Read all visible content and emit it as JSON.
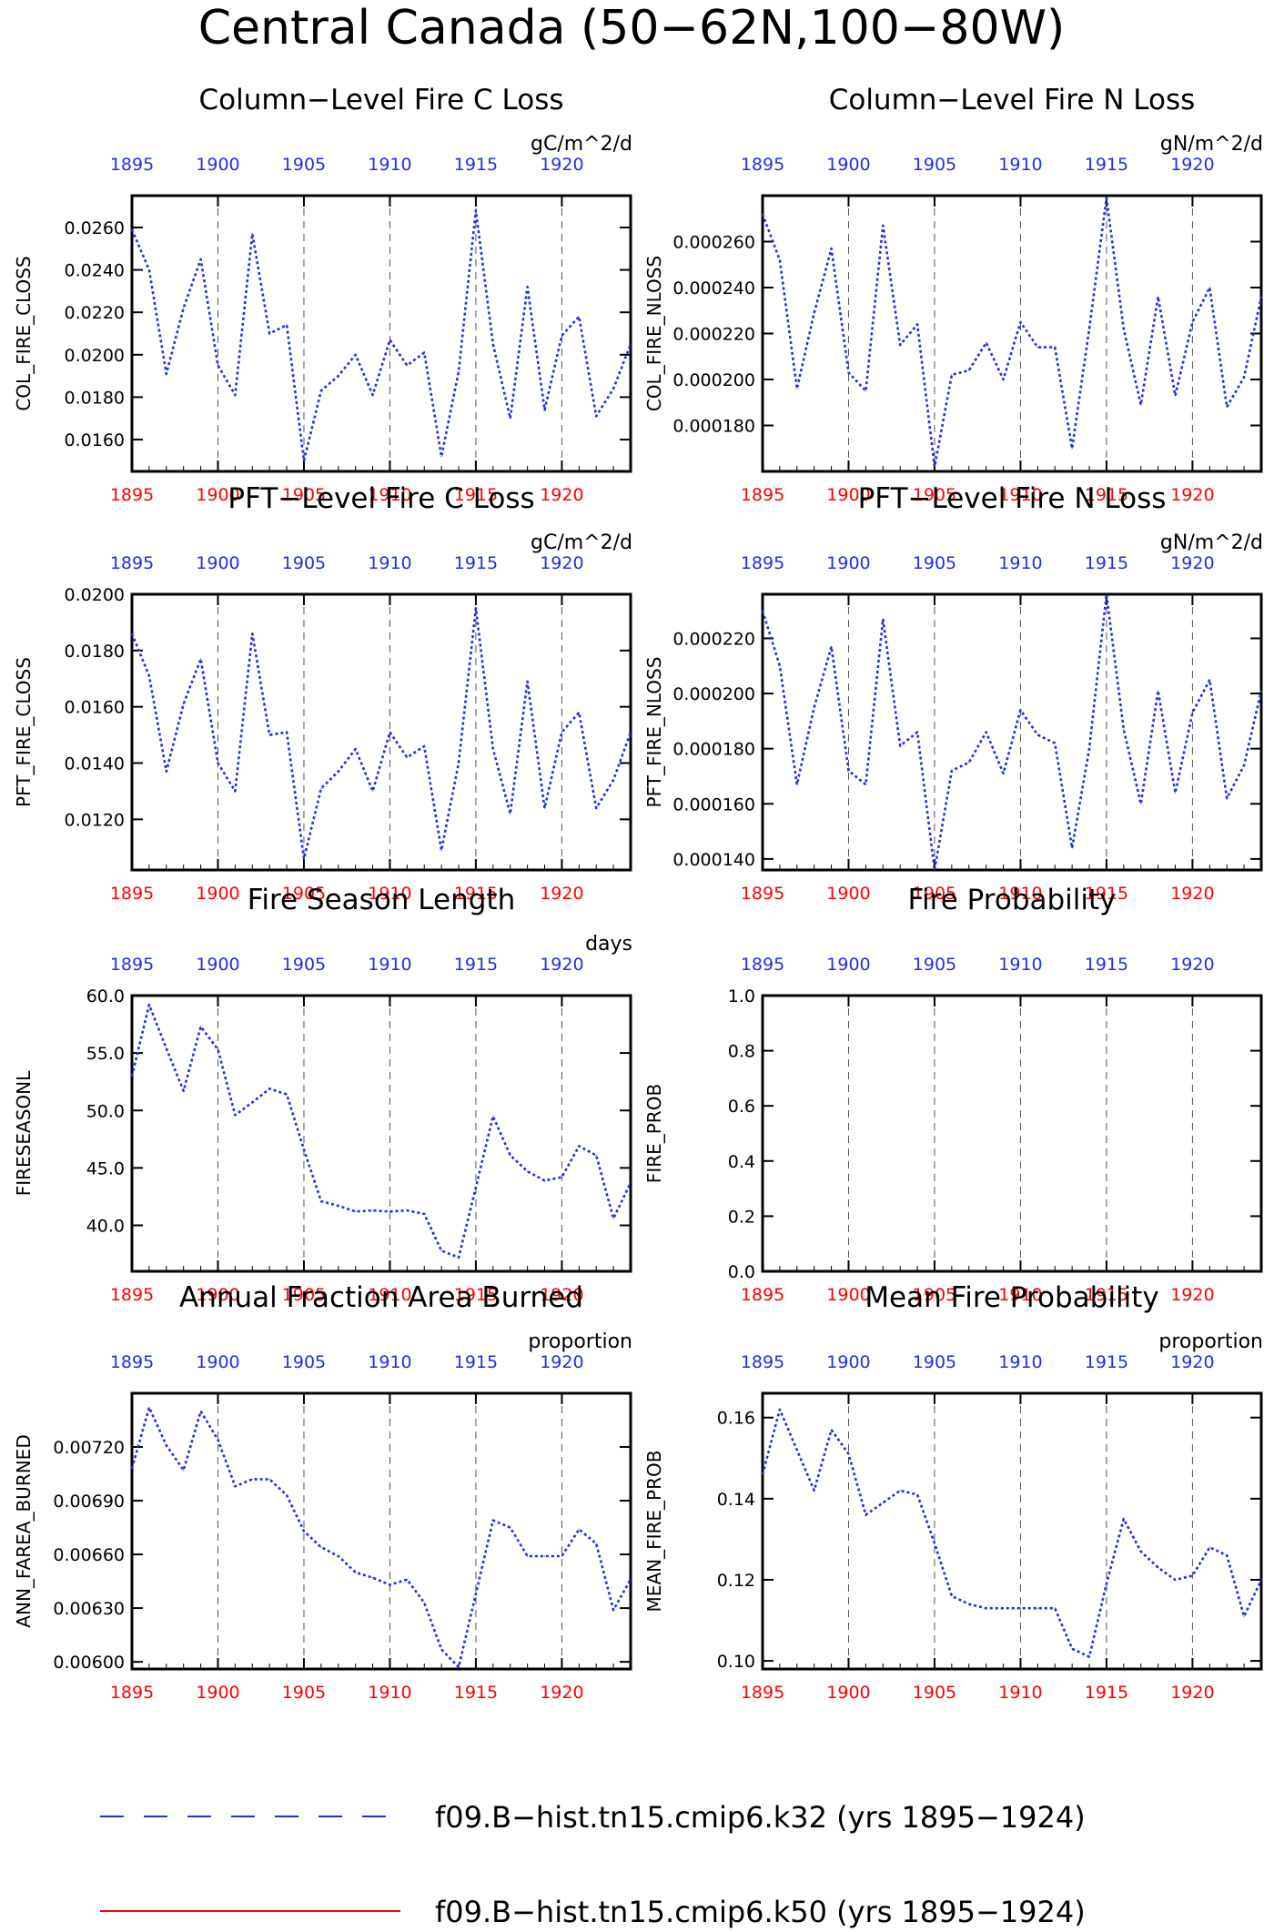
{
  "figure": {
    "title": "Central Canada (50−62N,100−80W)"
  },
  "colors": {
    "series1": "#1f2fe8",
    "series2": "#ff0000",
    "bottom_ticks": "#ff0000",
    "top_ticks": "#1f2fe8",
    "axis": "#000000",
    "grid": "#555555"
  },
  "legend": {
    "items": [
      {
        "label": "f09.B−hist.tn15.cmip6.k32 (yrs 1895−1924)",
        "style": "dashed",
        "color": "#1f2fe8"
      },
      {
        "label": "f09.B−hist.tn15.cmip6.k50 (yrs 1895−1924)",
        "style": "solid",
        "color": "#ff0000"
      }
    ]
  },
  "chart_data": [
    {
      "type": "line",
      "title": "Column−Level Fire C Loss",
      "units": "gC/m^2/d",
      "ylabel": "COL_FIRE_CLOSS",
      "xlim": [
        1895,
        1924
      ],
      "ylim": [
        0.0145,
        0.0275
      ],
      "xticks": [
        1895,
        1900,
        1905,
        1910,
        1915,
        1920
      ],
      "xtick_labels": [
        "1895",
        "1900",
        "1905",
        "1910",
        "1915",
        "1920"
      ],
      "yticks": [
        0.016,
        0.018,
        0.02,
        0.022,
        0.024,
        0.026
      ],
      "ytick_labels": [
        "0.0160",
        "0.0180",
        "0.0200",
        "0.0220",
        "0.0240",
        "0.0260"
      ],
      "grid_x": [
        1900,
        1905,
        1910,
        1915,
        1920
      ],
      "x": [
        1895,
        1896,
        1897,
        1898,
        1899,
        1900,
        1901,
        1902,
        1903,
        1904,
        1905,
        1906,
        1907,
        1908,
        1909,
        1910,
        1911,
        1912,
        1913,
        1914,
        1915,
        1916,
        1917,
        1918,
        1919,
        1920,
        1921,
        1922,
        1923,
        1924
      ],
      "series": [
        {
          "values": [
            0.0259,
            0.024,
            0.0191,
            0.0222,
            0.0245,
            0.0195,
            0.0181,
            0.0257,
            0.021,
            0.0214,
            0.015,
            0.0183,
            0.019,
            0.02,
            0.0181,
            0.0207,
            0.0195,
            0.0201,
            0.0152,
            0.0192,
            0.0268,
            0.0205,
            0.017,
            0.0232,
            0.0174,
            0.0209,
            0.0218,
            0.0171,
            0.0184,
            0.0205
          ]
        }
      ]
    },
    {
      "type": "line",
      "title": "Column−Level Fire N Loss",
      "units": "gN/m^2/d",
      "ylabel": "COL_FIRE_NLOSS",
      "xlim": [
        1895,
        1924
      ],
      "ylim": [
        0.00016,
        0.00028
      ],
      "xticks": [
        1895,
        1900,
        1905,
        1910,
        1915,
        1920
      ],
      "xtick_labels": [
        "1895",
        "1900",
        "1905",
        "1910",
        "1915",
        "1920"
      ],
      "yticks": [
        0.00018,
        0.0002,
        0.00022,
        0.00024,
        0.00026
      ],
      "ytick_labels": [
        "0.000180",
        "0.000200",
        "0.000220",
        "0.000240",
        "0.000260"
      ],
      "grid_x": [
        1900,
        1905,
        1910,
        1915,
        1920
      ],
      "x": [
        1895,
        1896,
        1897,
        1898,
        1899,
        1900,
        1901,
        1902,
        1903,
        1904,
        1905,
        1906,
        1907,
        1908,
        1909,
        1910,
        1911,
        1912,
        1913,
        1914,
        1915,
        1916,
        1917,
        1918,
        1919,
        1920,
        1921,
        1922,
        1923,
        1924
      ],
      "series": [
        {
          "values": [
            0.000272,
            0.000252,
            0.000196,
            0.000229,
            0.000257,
            0.000203,
            0.000195,
            0.000267,
            0.000215,
            0.000224,
            0.000162,
            0.000202,
            0.000204,
            0.000216,
            0.0002,
            0.000225,
            0.000214,
            0.000214,
            0.00017,
            0.000222,
            0.000279,
            0.000222,
            0.000189,
            0.000236,
            0.000193,
            0.000225,
            0.00024,
            0.000188,
            0.000201,
            0.000236
          ]
        }
      ]
    },
    {
      "type": "line",
      "title": "PFT−Level Fire C Loss",
      "units": "gC/m^2/d",
      "ylabel": "PFT_FIRE_CLOSS",
      "xlim": [
        1895,
        1924
      ],
      "ylim": [
        0.0102,
        0.02
      ],
      "xticks": [
        1895,
        1900,
        1905,
        1910,
        1915,
        1920
      ],
      "xtick_labels": [
        "1895",
        "1900",
        "1905",
        "1910",
        "1915",
        "1920"
      ],
      "yticks": [
        0.012,
        0.014,
        0.016,
        0.018,
        0.02
      ],
      "ytick_labels": [
        "0.0120",
        "0.0140",
        "0.0160",
        "0.0180",
        "0.0200"
      ],
      "grid_x": [
        1900,
        1905,
        1910,
        1915,
        1920
      ],
      "x": [
        1895,
        1896,
        1897,
        1898,
        1899,
        1900,
        1901,
        1902,
        1903,
        1904,
        1905,
        1906,
        1907,
        1908,
        1909,
        1910,
        1911,
        1912,
        1913,
        1914,
        1915,
        1916,
        1917,
        1918,
        1919,
        1920,
        1921,
        1922,
        1923,
        1924
      ],
      "series": [
        {
          "values": [
            0.0186,
            0.0171,
            0.0137,
            0.0161,
            0.0177,
            0.014,
            0.013,
            0.0186,
            0.015,
            0.0151,
            0.0106,
            0.0131,
            0.0137,
            0.0145,
            0.013,
            0.0151,
            0.0142,
            0.0146,
            0.0109,
            0.014,
            0.0195,
            0.0145,
            0.0122,
            0.0169,
            0.0124,
            0.0151,
            0.0158,
            0.0124,
            0.0134,
            0.0151
          ]
        }
      ]
    },
    {
      "type": "line",
      "title": "PFT−Level Fire N Loss",
      "units": "gN/m^2/d",
      "ylabel": "PFT_FIRE_NLOSS",
      "xlim": [
        1895,
        1924
      ],
      "ylim": [
        0.000136,
        0.000236
      ],
      "xticks": [
        1895,
        1900,
        1905,
        1910,
        1915,
        1920
      ],
      "xtick_labels": [
        "1895",
        "1900",
        "1905",
        "1910",
        "1915",
        "1920"
      ],
      "yticks": [
        0.00014,
        0.00016,
        0.00018,
        0.0002,
        0.00022
      ],
      "ytick_labels": [
        "0.000140",
        "0.000160",
        "0.000180",
        "0.000200",
        "0.000220"
      ],
      "grid_x": [
        1900,
        1905,
        1910,
        1915,
        1920
      ],
      "x": [
        1895,
        1896,
        1897,
        1898,
        1899,
        1900,
        1901,
        1902,
        1903,
        1904,
        1905,
        1906,
        1907,
        1908,
        1909,
        1910,
        1911,
        1912,
        1913,
        1914,
        1915,
        1916,
        1917,
        1918,
        1919,
        1920,
        1921,
        1922,
        1923,
        1924
      ],
      "series": [
        {
          "values": [
            0.00023,
            0.00021,
            0.000167,
            0.000195,
            0.000217,
            0.000172,
            0.000167,
            0.000227,
            0.000181,
            0.000186,
            0.000136,
            0.000172,
            0.000175,
            0.000186,
            0.000171,
            0.000194,
            0.000185,
            0.000182,
            0.000144,
            0.00018,
            0.000236,
            0.000187,
            0.00016,
            0.000201,
            0.000164,
            0.000193,
            0.000205,
            0.000162,
            0.000174,
            0.000201
          ]
        }
      ]
    },
    {
      "type": "line",
      "title": "Fire Season Length",
      "units": "days",
      "ylabel": "FIRESEASONL",
      "xlim": [
        1895,
        1924
      ],
      "ylim": [
        36.0,
        60.0
      ],
      "xticks": [
        1895,
        1900,
        1905,
        1910,
        1915,
        1920
      ],
      "xtick_labels": [
        "1895",
        "1900",
        "1905",
        "1910",
        "1915",
        "1920"
      ],
      "yticks": [
        40,
        45,
        50,
        55,
        60
      ],
      "ytick_labels": [
        "40.0",
        "45.0",
        "50.0",
        "55.0",
        "60.0"
      ],
      "grid_x": [
        1900,
        1905,
        1910,
        1915,
        1920
      ],
      "x": [
        1895,
        1896,
        1897,
        1898,
        1899,
        1900,
        1901,
        1902,
        1903,
        1904,
        1905,
        1906,
        1907,
        1908,
        1909,
        1910,
        1911,
        1912,
        1913,
        1914,
        1915,
        1916,
        1917,
        1918,
        1919,
        1920,
        1921,
        1922,
        1923,
        1924
      ],
      "series": [
        {
          "values": [
            53.0,
            59.2,
            55.4,
            51.7,
            57.3,
            55.3,
            49.6,
            50.7,
            51.9,
            51.4,
            46.6,
            42.1,
            41.7,
            41.2,
            41.3,
            41.2,
            41.3,
            41.0,
            37.8,
            37.2,
            43.3,
            49.5,
            46.1,
            44.7,
            43.9,
            44.2,
            46.9,
            46.1,
            40.6,
            43.7
          ]
        }
      ]
    },
    {
      "type": "line",
      "title": "Fire Probability",
      "units": "",
      "ylabel": "FIRE_PROB",
      "xlim": [
        1895,
        1924
      ],
      "ylim": [
        0.0,
        1.0
      ],
      "xticks": [
        1895,
        1900,
        1905,
        1910,
        1915,
        1920
      ],
      "xtick_labels": [
        "1895",
        "1900",
        "1905",
        "1910",
        "1915",
        "1920"
      ],
      "yticks": [
        0,
        0.2,
        0.4,
        0.6,
        0.8,
        1.0
      ],
      "ytick_labels": [
        "0.0",
        "0.2",
        "0.4",
        "0.6",
        "0.8",
        "1.0"
      ],
      "grid_x": [
        1900,
        1905,
        1910,
        1915,
        1920
      ],
      "x": [],
      "series": []
    },
    {
      "type": "line",
      "title": "Annual Fraction Area Burned",
      "units": "proportion",
      "ylabel": "ANN_FAREA_BURNED",
      "xlim": [
        1895,
        1924
      ],
      "ylim": [
        0.00596,
        0.0075
      ],
      "xticks": [
        1895,
        1900,
        1905,
        1910,
        1915,
        1920
      ],
      "xtick_labels": [
        "1895",
        "1900",
        "1905",
        "1910",
        "1915",
        "1920"
      ],
      "yticks": [
        0.006,
        0.0063,
        0.0066,
        0.0069,
        0.0072
      ],
      "ytick_labels": [
        "0.00600",
        "0.00630",
        "0.00660",
        "0.00690",
        "0.00720"
      ],
      "grid_x": [
        1900,
        1905,
        1910,
        1915,
        1920
      ],
      "x": [
        1895,
        1896,
        1897,
        1898,
        1899,
        1900,
        1901,
        1902,
        1903,
        1904,
        1905,
        1906,
        1907,
        1908,
        1909,
        1910,
        1911,
        1912,
        1913,
        1914,
        1915,
        1916,
        1917,
        1918,
        1919,
        1920,
        1921,
        1922,
        1923,
        1924
      ],
      "series": [
        {
          "values": [
            0.00708,
            0.00742,
            0.00721,
            0.00707,
            0.0074,
            0.00724,
            0.00698,
            0.00702,
            0.00702,
            0.00693,
            0.00673,
            0.00664,
            0.00659,
            0.0065,
            0.00647,
            0.00643,
            0.00646,
            0.00633,
            0.00607,
            0.00597,
            0.00638,
            0.00679,
            0.00675,
            0.00659,
            0.00659,
            0.00659,
            0.00674,
            0.00666,
            0.00629,
            0.00646
          ]
        }
      ]
    },
    {
      "type": "line",
      "title": "Mean Fire Probability",
      "units": "proportion",
      "ylabel": "MEAN_FIRE_PROB",
      "xlim": [
        1895,
        1924
      ],
      "ylim": [
        0.098,
        0.166
      ],
      "xticks": [
        1895,
        1900,
        1905,
        1910,
        1915,
        1920
      ],
      "xtick_labels": [
        "1895",
        "1900",
        "1905",
        "1910",
        "1915",
        "1920"
      ],
      "yticks": [
        0.1,
        0.12,
        0.14,
        0.16
      ],
      "ytick_labels": [
        "0.10",
        "0.12",
        "0.14",
        "0.16"
      ],
      "grid_x": [
        1900,
        1905,
        1910,
        1915,
        1920
      ],
      "x": [
        1895,
        1896,
        1897,
        1898,
        1899,
        1900,
        1901,
        1902,
        1903,
        1904,
        1905,
        1906,
        1907,
        1908,
        1909,
        1910,
        1911,
        1912,
        1913,
        1914,
        1915,
        1916,
        1917,
        1918,
        1919,
        1920,
        1921,
        1922,
        1923,
        1924
      ],
      "series": [
        {
          "values": [
            0.146,
            0.162,
            0.152,
            0.142,
            0.157,
            0.151,
            0.136,
            0.139,
            0.142,
            0.141,
            0.129,
            0.116,
            0.114,
            0.113,
            0.113,
            0.113,
            0.113,
            0.113,
            0.103,
            0.101,
            0.119,
            0.135,
            0.127,
            0.123,
            0.12,
            0.121,
            0.128,
            0.126,
            0.111,
            0.12
          ]
        }
      ]
    }
  ]
}
